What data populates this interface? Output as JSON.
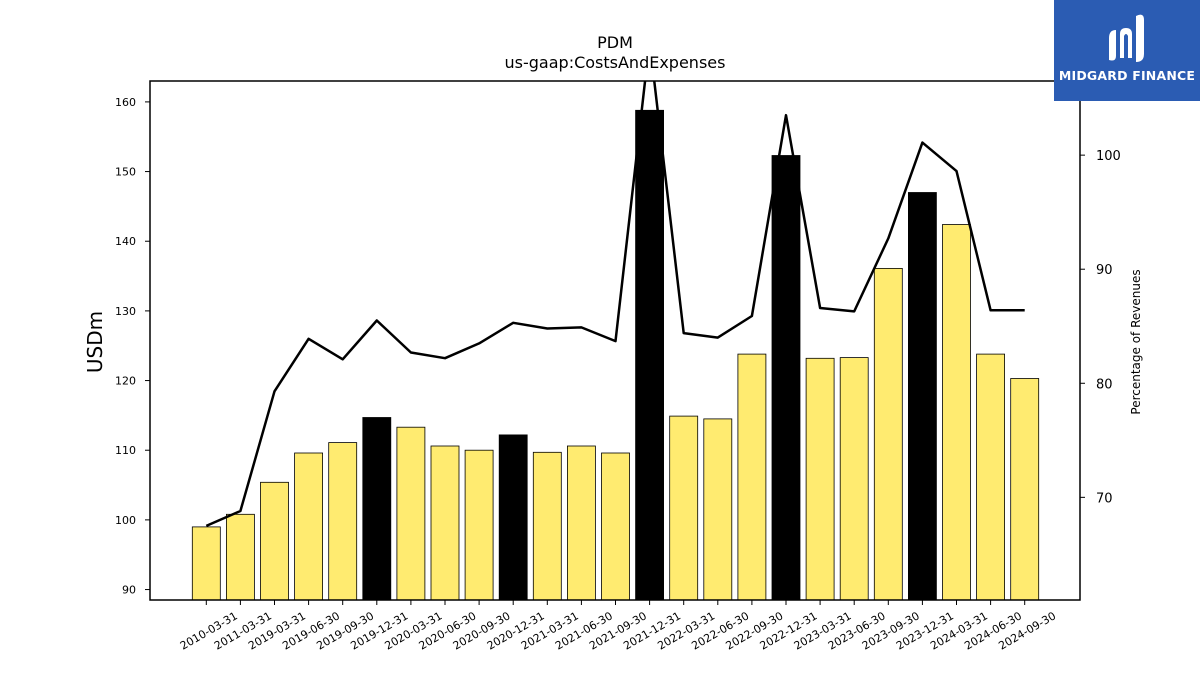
{
  "logo": {
    "text": "MIDGARD FINANCE"
  },
  "colors": {
    "bar_regular": "#ffeb70",
    "bar_year_end": "#000000",
    "line": "#000000",
    "logo_bg": "#2b5cb3"
  },
  "chart_data": {
    "type": "bar",
    "title": "PDM",
    "subtitle": "us-gaap:CostsAndExpenses",
    "ylabel": "USDm",
    "y2label": "Percentage of Revenues",
    "ylim": [
      88.5,
      163
    ],
    "y2lim": [
      61,
      106.5
    ],
    "yticks": [
      90,
      100,
      110,
      120,
      130,
      140,
      150,
      160
    ],
    "y2ticks": [
      70,
      80,
      90,
      100
    ],
    "categories": [
      "2010-03-31",
      "2011-03-31",
      "2019-03-31",
      "2019-06-30",
      "2019-09-30",
      "2019-12-31",
      "2020-03-31",
      "2020-06-30",
      "2020-09-30",
      "2020-12-31",
      "2021-03-31",
      "2021-06-30",
      "2021-09-30",
      "2021-12-31",
      "2022-03-31",
      "2022-06-30",
      "2022-09-30",
      "2022-12-31",
      "2023-03-31",
      "2023-06-30",
      "2023-09-30",
      "2023-12-31",
      "2024-03-31",
      "2024-06-30",
      "2024-09-30"
    ],
    "series": [
      {
        "values": [
          99.0,
          100.8,
          105.4,
          109.6,
          111.1,
          114.7,
          113.3,
          110.6,
          110.0,
          112.2,
          109.7,
          110.6,
          109.6,
          158.8,
          114.9,
          114.5,
          123.8,
          152.3,
          123.2,
          123.3,
          136.1,
          147.0,
          142.4,
          123.8,
          120.3
        ],
        "highlight": [
          false,
          false,
          false,
          false,
          false,
          true,
          false,
          false,
          false,
          true,
          false,
          false,
          false,
          true,
          false,
          false,
          false,
          true,
          false,
          false,
          false,
          true,
          false,
          false,
          false
        ]
      },
      {
        "type": "line",
        "axis": "right",
        "values": [
          67.5,
          68.8,
          79.3,
          83.9,
          82.1,
          85.5,
          82.7,
          82.2,
          83.5,
          85.3,
          84.8,
          84.9,
          83.7,
          110.0,
          84.4,
          84.0,
          85.9,
          103.5,
          86.6,
          86.3,
          92.7,
          101.1,
          98.6,
          86.4,
          86.4
        ]
      }
    ],
    "grid": false,
    "legend": "none"
  }
}
